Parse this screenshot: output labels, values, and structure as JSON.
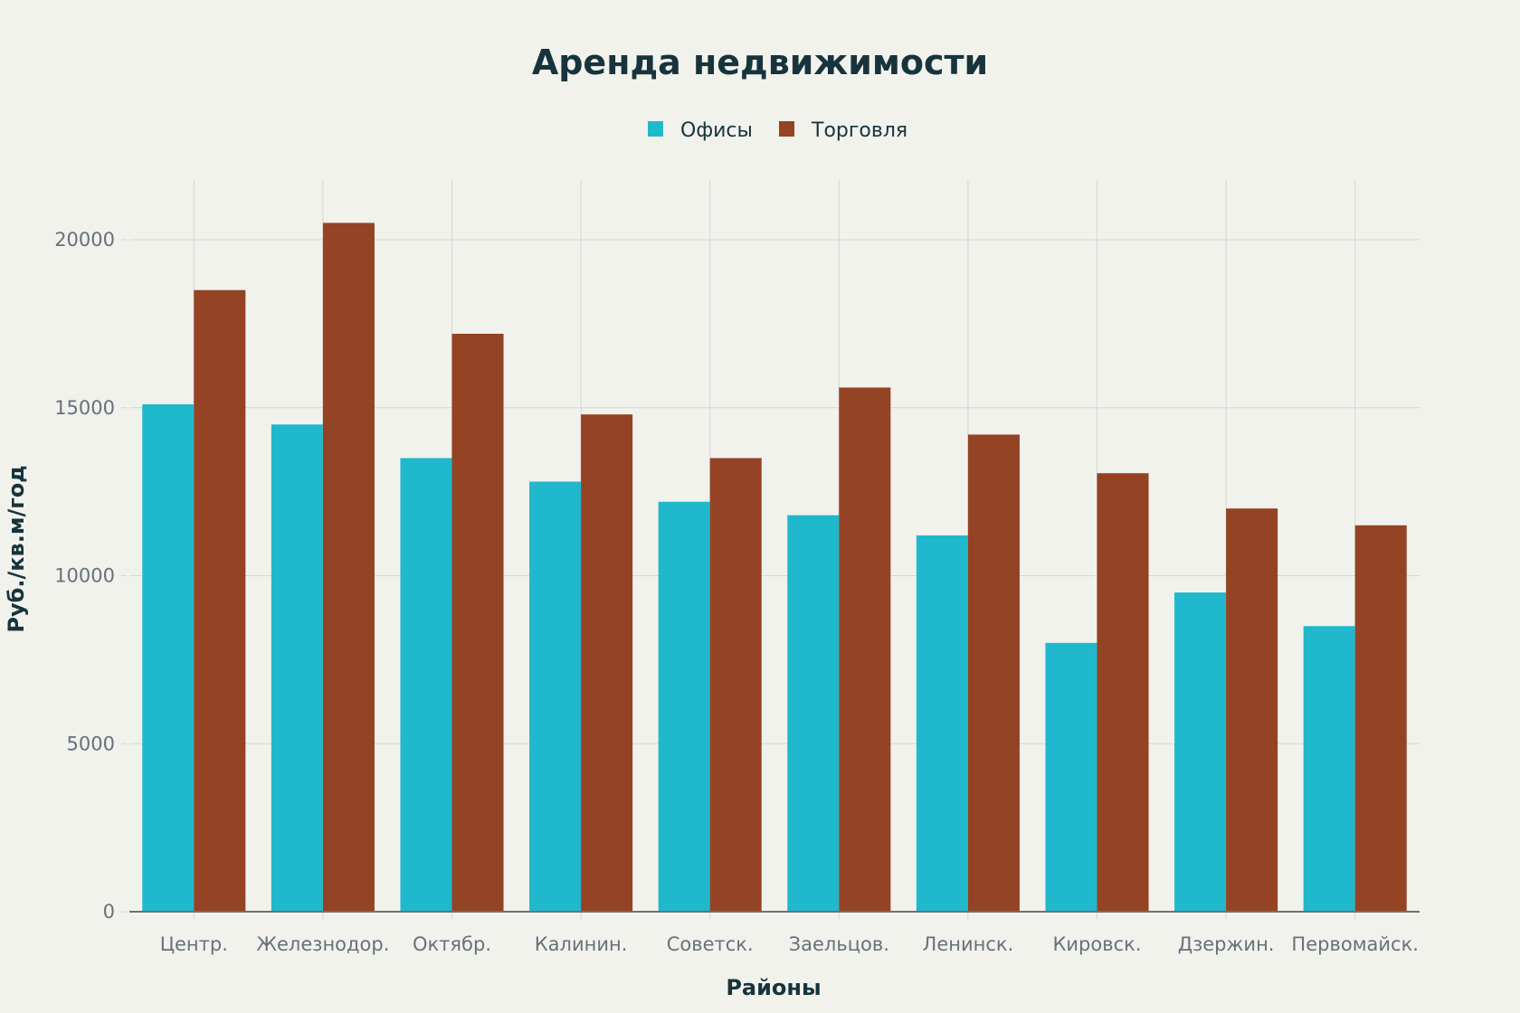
{
  "chart_data": {
    "type": "bar",
    "title": "Аренда недвижимости",
    "xlabel": "Районы",
    "ylabel": "Руб./кв.м/год",
    "categories": [
      "Центр.",
      "Железнодор.",
      "Октябр.",
      "Калинин.",
      "Советск.",
      "Заельцов.",
      "Ленинск.",
      "Кировск.",
      "Дзержин.",
      "Первомайск."
    ],
    "series": [
      {
        "name": "Офисы",
        "color": "#20b8cd",
        "values": [
          15100,
          14500,
          13500,
          12800,
          12200,
          11800,
          11200,
          8000,
          9500,
          8500
        ]
      },
      {
        "name": "Торговля",
        "color": "#944325",
        "values": [
          18500,
          20500,
          17200,
          14800,
          13500,
          15600,
          14200,
          13050,
          12000,
          11500
        ]
      }
    ],
    "ylim": [
      0,
      21500
    ],
    "yticks": [
      0,
      5000,
      10000,
      15000,
      20000
    ],
    "grid": true,
    "legend_position": "top-center"
  }
}
